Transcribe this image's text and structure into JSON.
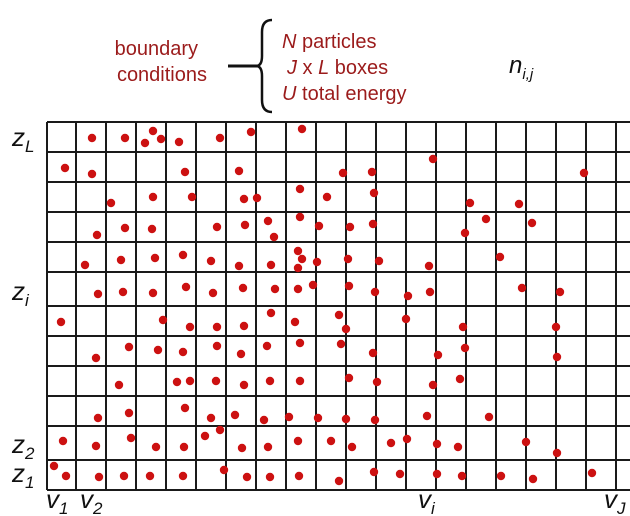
{
  "labels": {
    "boundary_line1": "boundary",
    "boundary_line2": "conditions",
    "particles": {
      "var": "N",
      "rest": " particles"
    },
    "boxes": {
      "var1": "J",
      "mid": " x ",
      "var2": "L",
      "rest": " boxes"
    },
    "energy": {
      "var": "U",
      "rest": " total energy"
    },
    "occupancy": {
      "base": "n",
      "sub": "i,j"
    }
  },
  "z_labels": [
    {
      "base": "z",
      "sub": "L"
    },
    {
      "base": "z",
      "sub": "i"
    },
    {
      "base": "z",
      "sub": "2"
    },
    {
      "base": "z",
      "sub": "1"
    }
  ],
  "v_labels": [
    {
      "base": "v",
      "sub": "1"
    },
    {
      "base": "v",
      "sub": "2"
    },
    {
      "base": "v",
      "sub": "i"
    },
    {
      "base": "v",
      "sub": "J"
    }
  ],
  "colors": {
    "text_red": "#9b1b1b",
    "particle": "#cc1111",
    "grid": "#1a1a1a"
  }
}
